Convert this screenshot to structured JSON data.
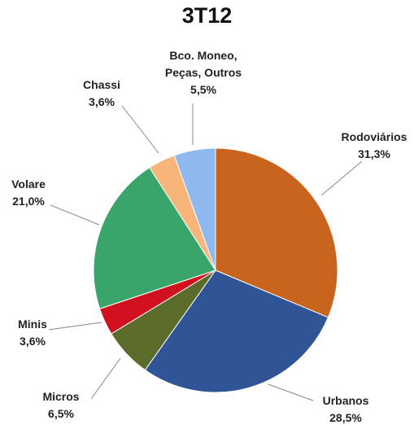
{
  "chart_data": {
    "type": "pie",
    "title": "3T12",
    "categories": [
      "Rodoviários",
      "Urbanos",
      "Micros",
      "Minis",
      "Volare",
      "Chassi",
      "Bco. Moneo, Peças, Outros"
    ],
    "values": [
      31.3,
      28.5,
      6.5,
      3.6,
      21.0,
      3.6,
      5.5
    ],
    "value_labels": [
      "31,3%",
      "28,5%",
      "6,5%",
      "3,6%",
      "21,0%",
      "3,6%",
      "5,5%"
    ],
    "colors": [
      "#c8641e",
      "#2f5597",
      "#5b6b2a",
      "#d0101e",
      "#3aa56b",
      "#f7b57a",
      "#8fb8ee"
    ]
  }
}
